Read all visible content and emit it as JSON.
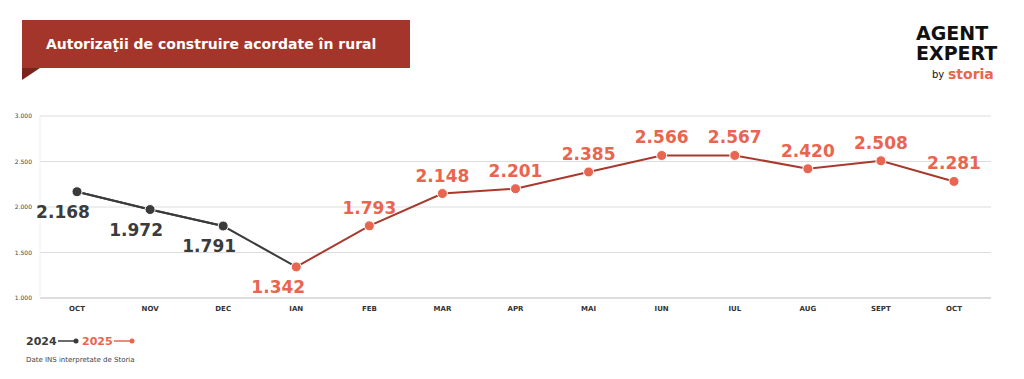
{
  "chart_data": {
    "type": "line",
    "title": "Autorizaţii de construire acordate în rural",
    "categories": [
      "OCT",
      "NOV",
      "DEC",
      "IAN",
      "FEB",
      "MAR",
      "APR",
      "MAI",
      "IUN",
      "IUL",
      "AUG",
      "SEPT",
      "OCT"
    ],
    "series": [
      {
        "name": "2024",
        "color": "#3b3b3b",
        "values": [
          2168,
          1972,
          1791,
          null,
          null,
          null,
          null,
          null,
          null,
          null,
          null,
          null,
          null
        ],
        "value_labels": [
          "2.168",
          "1.972",
          "1.791",
          null,
          null,
          null,
          null,
          null,
          null,
          null,
          null,
          null,
          null
        ]
      },
      {
        "name": "2025",
        "color": "#a8392c",
        "values": [
          null,
          null,
          null,
          1342,
          1793,
          2148,
          2201,
          2385,
          2566,
          2567,
          2420,
          2508,
          2281
        ],
        "value_labels": [
          null,
          null,
          null,
          "1.342",
          "1.793",
          "2.148",
          "2.201",
          "2.385",
          "2.566",
          "2.567",
          "2.420",
          "2.508",
          "2.281"
        ]
      }
    ],
    "ylim": [
      1000,
      3000
    ],
    "yticks": [
      {
        "value": 1000,
        "label": "1.000"
      },
      {
        "value": 1500,
        "label": "1.500"
      },
      {
        "value": 2000,
        "label": "2.000"
      },
      {
        "value": 2500,
        "label": "2.500"
      },
      {
        "value": 3000,
        "label": "3.000"
      }
    ],
    "grid": true,
    "data_labels": true,
    "marker": "circle",
    "legend": "bottom-left",
    "source": "Date INS interpretate de Storia",
    "logo": {
      "lines": [
        "AGENT",
        "EXPERT"
      ],
      "by": "by",
      "brand": "storia"
    }
  }
}
